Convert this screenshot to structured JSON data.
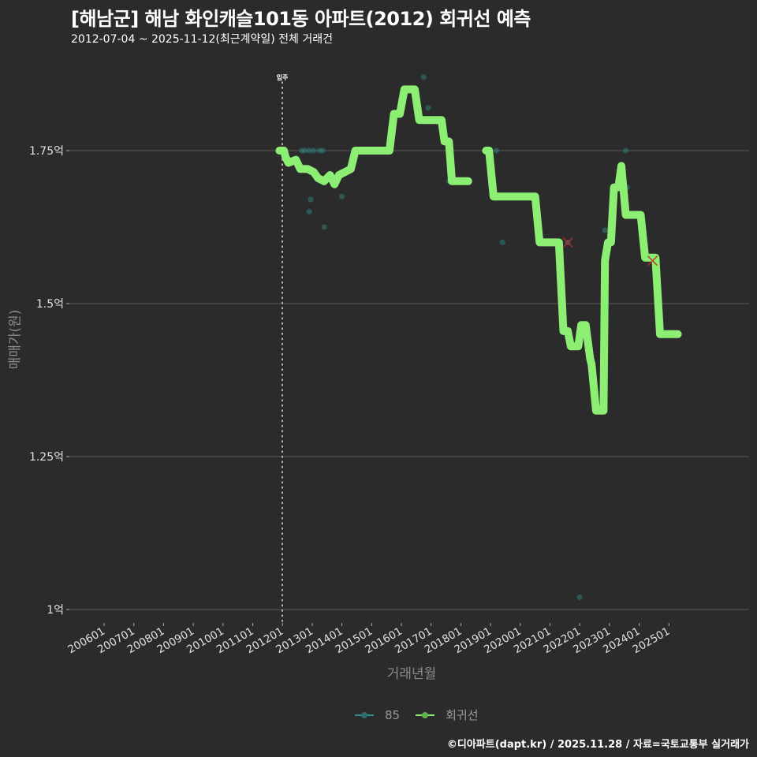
{
  "header": {
    "title": "[해남군] 해남 화인캐슬101동 아파트(2012) 회귀선 예측",
    "subtitle": "2012-07-04 ~ 2025-11-12(최근계약일) 전체 거래건"
  },
  "annotation": {
    "label": "입주",
    "x_month": "201207"
  },
  "legend": {
    "items": [
      {
        "label": "85",
        "color": "#2f8f8a"
      },
      {
        "label": "회귀선",
        "color": "#8cef74"
      }
    ]
  },
  "footer": {
    "text": "©디아파트(dapt.kr) / 2025.11.28 / 자료=국토교통부 실거래가"
  },
  "colors": {
    "background": "#2b2b2b",
    "grid": "#5a5a5a",
    "regression": "#8cef74",
    "scatter": "#2f8f8a",
    "outlier": "#c0282a",
    "text": "#ffffff",
    "axis_title": "#8a8a8a"
  },
  "chart_data": {
    "type": "line",
    "title": "[해남군] 해남 화인캐슬101동 아파트(2012) 회귀선 예측",
    "subtitle": "2012-07-04 ~ 2025-11-12(최근계약일) 전체 거래건",
    "xlabel": "거래년월",
    "ylabel": "매매가(원)",
    "x_ticks": [
      "200601",
      "200701",
      "200801",
      "200901",
      "201001",
      "201101",
      "201201",
      "201301",
      "201401",
      "201501",
      "201601",
      "201701",
      "201801",
      "201901",
      "202001",
      "202101",
      "202201",
      "202301",
      "202401",
      "202501"
    ],
    "y_ticks": [
      {
        "value": 1.0,
        "label": "1억"
      },
      {
        "value": 1.25,
        "label": "1.25억"
      },
      {
        "value": 1.5,
        "label": "1.5억"
      },
      {
        "value": 1.75,
        "label": "1.75억"
      }
    ],
    "ylim": [
      0.97,
      1.97
    ],
    "grid": true,
    "legend_position": "bottom",
    "series": [
      {
        "name": "회귀선",
        "unit": "억",
        "points": [
          [
            "2011.90",
            1.75
          ],
          [
            "2012.05",
            1.75
          ],
          [
            "2012.10",
            1.74
          ],
          [
            "2012.20",
            1.73
          ],
          [
            "2012.45",
            1.735
          ],
          [
            "2012.60",
            1.72
          ],
          [
            "2012.85",
            1.72
          ],
          [
            "2013.05",
            1.715
          ],
          [
            "2013.20",
            1.705
          ],
          [
            "2013.40",
            1.7
          ],
          [
            "2013.60",
            1.71
          ],
          [
            "2013.75",
            1.695
          ],
          [
            "2013.90",
            1.71
          ],
          [
            "2014.10",
            1.715
          ],
          [
            "2014.30",
            1.72
          ],
          [
            "2014.45",
            1.75
          ],
          [
            "2015.60",
            1.75
          ],
          [
            "2015.75",
            1.81
          ],
          [
            "2015.95",
            1.81
          ],
          [
            "2016.10",
            1.85
          ],
          [
            "2016.45",
            1.85
          ],
          [
            "2016.60",
            1.8
          ],
          [
            "2017.35",
            1.8
          ],
          [
            "2017.45",
            1.765
          ],
          [
            "2017.60",
            1.765
          ],
          [
            "2017.70",
            1.7
          ],
          [
            "2018.25",
            1.7
          ]
        ]
      },
      {
        "name": "회귀선",
        "unit": "억",
        "points": [
          [
            "2018.85",
            1.75
          ],
          [
            "2018.95",
            1.75
          ],
          [
            "2019.10",
            1.675
          ],
          [
            "2020.50",
            1.675
          ],
          [
            "2020.65",
            1.6
          ],
          [
            "2021.30",
            1.6
          ],
          [
            "2021.45",
            1.455
          ],
          [
            "2021.60",
            1.455
          ],
          [
            "2021.70",
            1.43
          ],
          [
            "2021.95",
            1.43
          ],
          [
            "2022.05",
            1.465
          ],
          [
            "2022.20",
            1.465
          ],
          [
            "2022.35",
            1.41
          ],
          [
            "2022.40",
            1.4
          ],
          [
            "2022.55",
            1.325
          ],
          [
            "2022.80",
            1.325
          ],
          [
            "2022.85",
            1.57
          ],
          [
            "2022.95",
            1.6
          ],
          [
            "2023.05",
            1.6
          ],
          [
            "2023.15",
            1.69
          ],
          [
            "2023.30",
            1.69
          ],
          [
            "2023.40",
            1.725
          ],
          [
            "2023.55",
            1.645
          ],
          [
            "2024.05",
            1.645
          ],
          [
            "2024.20",
            1.575
          ],
          [
            "2024.55",
            1.575
          ],
          [
            "2024.70",
            1.45
          ],
          [
            "2025.30",
            1.45
          ]
        ]
      },
      {
        "name": "85",
        "type": "scatter",
        "unit": "억",
        "points": [
          [
            "2012.65",
            1.75
          ],
          [
            "2012.75",
            1.75
          ],
          [
            "2012.90",
            1.75
          ],
          [
            "2013.05",
            1.75
          ],
          [
            "2013.25",
            1.75
          ],
          [
            "2013.35",
            1.75
          ],
          [
            "2012.95",
            1.67
          ],
          [
            "2012.90",
            1.65
          ],
          [
            "2013.40",
            1.625
          ],
          [
            "2014.00",
            1.675
          ],
          [
            "2016.75",
            1.87
          ],
          [
            "2016.90",
            1.82
          ],
          [
            "2017.60",
            1.7
          ],
          [
            "2019.20",
            1.75
          ],
          [
            "2019.40",
            1.6
          ],
          [
            "2021.60",
            1.6
          ],
          [
            "2022.00",
            1.02
          ],
          [
            "2022.85",
            1.62
          ],
          [
            "2023.55",
            1.75
          ],
          [
            "2023.60",
            1.69
          ]
        ]
      },
      {
        "name": "outliers",
        "type": "scatter",
        "marker": "x",
        "unit": "억",
        "points": [
          [
            "2021.60",
            1.6
          ],
          [
            "2024.45",
            1.57
          ]
        ]
      }
    ]
  }
}
